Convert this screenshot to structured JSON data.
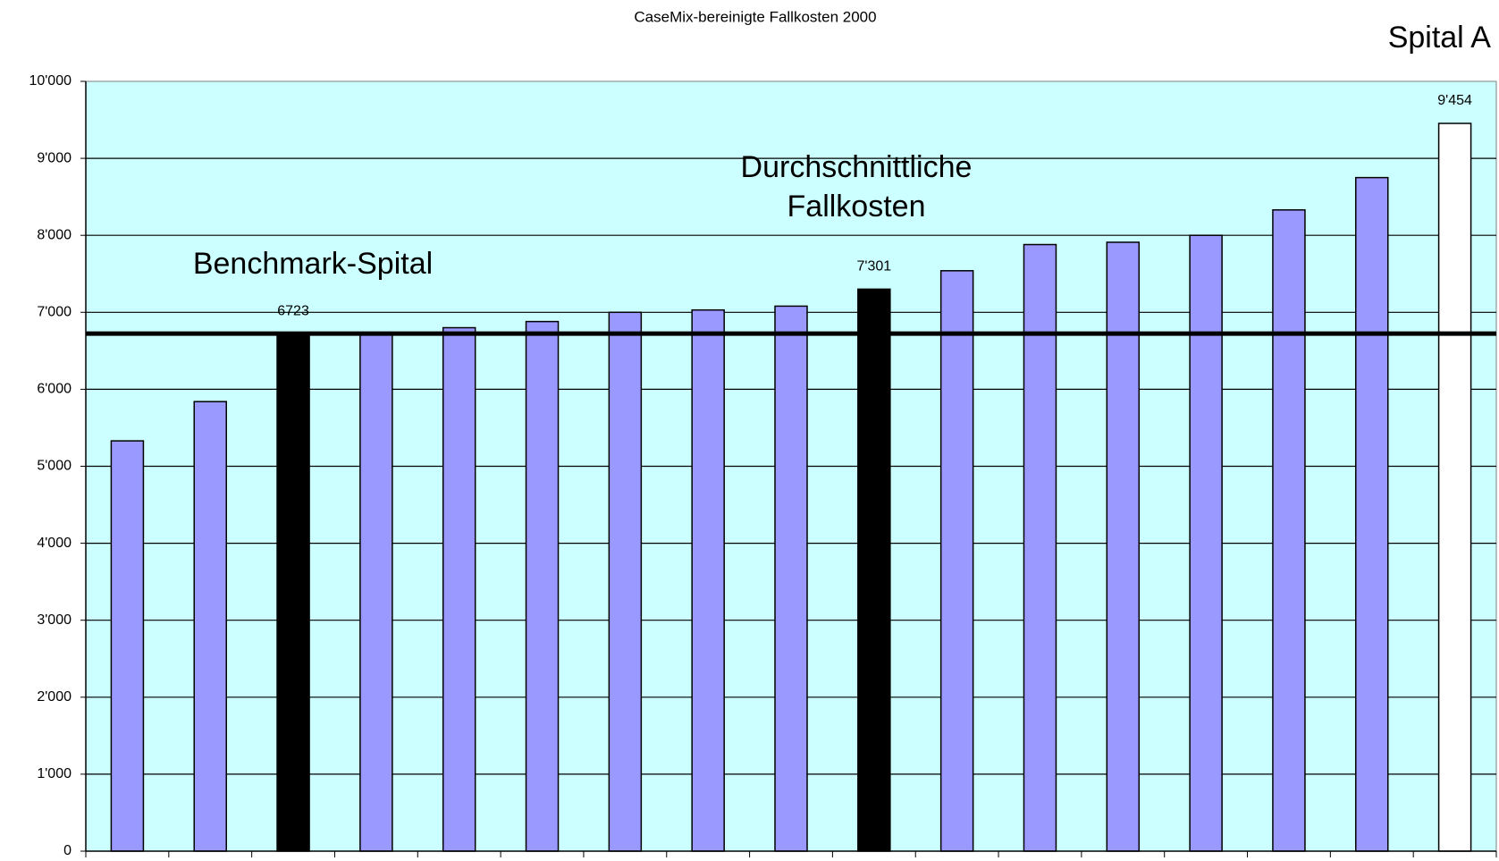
{
  "chart_data": {
    "type": "bar",
    "title": "CaseMix-bereinigte Fallkosten 2000",
    "categories": [
      null,
      null,
      null,
      null,
      null,
      null,
      null,
      null,
      null,
      null,
      null,
      null,
      null,
      null,
      null,
      null,
      null
    ],
    "values": [
      5330,
      5840,
      6723,
      6740,
      6800,
      6880,
      7000,
      7030,
      7080,
      7301,
      7540,
      7880,
      7910,
      8000,
      8330,
      8750,
      9454
    ],
    "value_labels": [
      null,
      null,
      "6723",
      null,
      null,
      null,
      null,
      null,
      null,
      "7'301",
      null,
      null,
      null,
      null,
      null,
      null,
      "9'454"
    ],
    "colors": [
      "#9999ff",
      "#9999ff",
      "#000000",
      "#9999ff",
      "#9999ff",
      "#9999ff",
      "#9999ff",
      "#9999ff",
      "#9999ff",
      "#000000",
      "#9999ff",
      "#9999ff",
      "#9999ff",
      "#9999ff",
      "#9999ff",
      "#9999ff",
      "#ffffff"
    ],
    "ylim": [
      0,
      10000
    ],
    "yticks": [
      0,
      {
        "value": 1000,
        "label": "1'000"
      },
      {
        "value": 2000,
        "label": "2'000"
      },
      {
        "value": 3000,
        "label": "3'000"
      },
      {
        "value": 4000,
        "label": "4'000"
      },
      {
        "value": 5000,
        "label": "5'000"
      },
      {
        "value": 6000,
        "label": "6'000"
      },
      {
        "value": 7000,
        "label": "7'000"
      },
      {
        "value": 8000,
        "label": "8'000"
      },
      {
        "value": 9000,
        "label": "9'000"
      },
      {
        "value": 10000,
        "label": "10'000"
      }
    ],
    "grid": true,
    "background": "#ccffff",
    "benchmark_line": 6723,
    "annotations": {
      "benchmark": "Benchmark-Spital",
      "average": [
        "Durchschnittliche",
        "Fallkosten"
      ],
      "hospital": "Spital A"
    }
  }
}
